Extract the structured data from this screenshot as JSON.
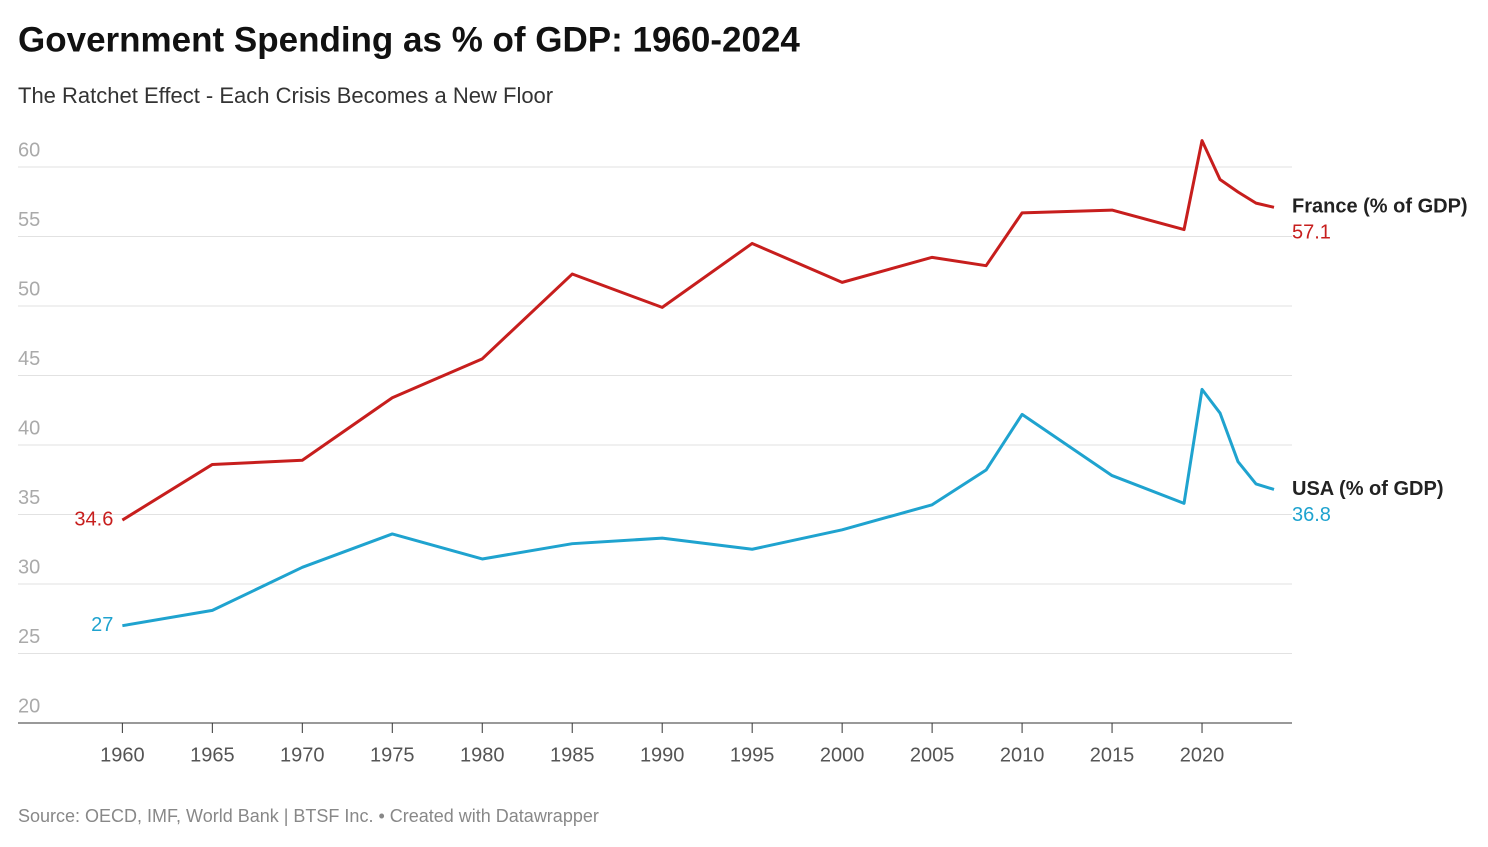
{
  "chart_data": {
    "type": "line",
    "title": "Government Spending as % of GDP: 1960-2024",
    "subtitle": "The Ratchet Effect - Each Crisis Becomes a New Floor",
    "source": "Source: OECD, IMF, World Bank | BTSF Inc. • Created with Datawrapper",
    "x": [
      1960,
      1965,
      1970,
      1975,
      1980,
      1985,
      1990,
      1995,
      2000,
      2005,
      2008,
      2010,
      2015,
      2019,
      2020,
      2021,
      2022,
      2023,
      2024
    ],
    "series": [
      {
        "name": "France (% of GDP)",
        "color": "#c71e1d",
        "values": [
          34.6,
          38.6,
          38.9,
          43.4,
          46.2,
          52.3,
          49.9,
          54.5,
          51.7,
          53.5,
          52.9,
          56.7,
          56.9,
          55.5,
          61.9,
          59.1,
          58.2,
          57.4,
          57.1
        ]
      },
      {
        "name": "USA (% of GDP)",
        "color": "#1fa3cf",
        "values": [
          27,
          28.1,
          31.2,
          33.6,
          31.8,
          32.9,
          33.3,
          32.5,
          33.9,
          35.7,
          38.2,
          42.2,
          37.8,
          35.8,
          44.0,
          42.3,
          38.8,
          37.2,
          36.8
        ]
      }
    ],
    "xlim": [
      1954.2,
      2025
    ],
    "xticks": [
      1960,
      1965,
      1970,
      1975,
      1980,
      1985,
      1990,
      1995,
      2000,
      2005,
      2010,
      2015,
      2020
    ],
    "ylim": [
      20,
      62
    ],
    "yticks": [
      20,
      25,
      30,
      35,
      40,
      45,
      50,
      55,
      60
    ],
    "grid": true
  }
}
